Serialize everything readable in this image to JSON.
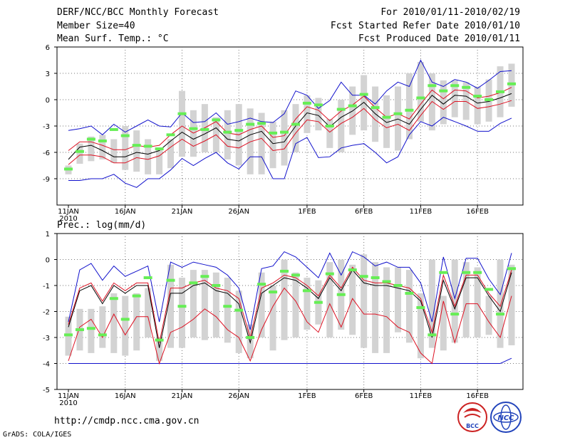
{
  "header": {
    "title": "DERF/NCC/BCC Monthly Forecast",
    "members": "Member Size=40",
    "variable": "Mean Surf. Temp.: °C",
    "period": "For 2010/01/11-2010/02/19",
    "started": "Fcst Started Refer Date 2010/01/10",
    "produced": "Fcst Produced Date 2010/01/11"
  },
  "footer": {
    "url": "http://cmdp.ncc.cma.gov.cn",
    "grads": "GrADS: COLA/IGES",
    "logo_left": "BCC",
    "logo_right": "NCC"
  },
  "colors": {
    "ensemble_bar": "#d3d3d3",
    "mean_marker": "#66ee55",
    "median_line": "#000000",
    "quartile_line": "#dd1122",
    "extreme_line": "#1111cc",
    "bcc_logo": "#cc2222",
    "ncc_logo": "#2244bb"
  },
  "chart_data": [
    {
      "type": "box",
      "title": "Mean Surf. Temp.: °C",
      "x_ticks": [
        {
          "day": 1,
          "label": "11JAN",
          "sub": "2010"
        },
        {
          "day": 6,
          "label": "16JAN"
        },
        {
          "day": 11,
          "label": "21JAN"
        },
        {
          "day": 16,
          "label": "26JAN"
        },
        {
          "day": 22,
          "label": "1FEB"
        },
        {
          "day": 27,
          "label": "6FEB"
        },
        {
          "day": 32,
          "label": "11FEB"
        },
        {
          "day": 37,
          "label": "16FEB"
        }
      ],
      "ylim": [
        -12,
        6
      ],
      "yticks": [
        6,
        3,
        0,
        -3,
        -6,
        -9
      ],
      "days": [
        1,
        2,
        3,
        4,
        5,
        6,
        7,
        8,
        9,
        10,
        11,
        12,
        13,
        14,
        15,
        16,
        17,
        18,
        19,
        20,
        21,
        22,
        23,
        24,
        25,
        26,
        27,
        28,
        29,
        30,
        31,
        32,
        33,
        34,
        35,
        36,
        37,
        38,
        39,
        40
      ],
      "box_low": [
        -8.5,
        -7.3,
        -7,
        -6.8,
        -7.2,
        -8,
        -8.2,
        -8.5,
        -8.5,
        -7.8,
        -6.5,
        -6.5,
        -6,
        -6,
        -6.8,
        -7.5,
        -8.5,
        -8.5,
        -7.8,
        -7.5,
        -6,
        -3.8,
        -3.5,
        -5.5,
        -6,
        -4,
        -3.5,
        -4.8,
        -5.5,
        -5.8,
        -4.5,
        -2.5,
        -3.5,
        -2.8,
        -2,
        -2.3,
        -2.8,
        -2.5,
        -2,
        -0.8
      ],
      "box_high": [
        -7.5,
        -5,
        -4.2,
        -4,
        -4.5,
        -3,
        -3.5,
        -4.5,
        -5.5,
        -4.5,
        1,
        -1.2,
        -0.5,
        -2,
        -1.2,
        -0.5,
        -1,
        -1.5,
        -2.5,
        -1.2,
        -0.5,
        0.5,
        0.2,
        -2.2,
        0,
        1.5,
        2.8,
        1.5,
        0.5,
        1.5,
        3,
        4.3,
        3,
        2.2,
        2.2,
        2,
        1.5,
        2.3,
        3.8,
        4.1
      ],
      "mean": [
        -7.9,
        -5.9,
        -4.5,
        -4.7,
        -3.4,
        -4.1,
        -5.2,
        -5.3,
        -5.6,
        -4.0,
        -1.6,
        -3.3,
        -3.4,
        -2.3,
        -3.7,
        -3.5,
        -2.8,
        -2.7,
        -3.8,
        -3.7,
        -2.8,
        -0.4,
        -0.6,
        -3.0,
        -1.1,
        -0.7,
        0.6,
        -0.9,
        -2.0,
        -1.6,
        -1.2,
        0.2,
        1.6,
        1.0,
        1.6,
        1.4,
        0.4,
        0.0,
        0.9,
        1.8
      ],
      "median": [
        -6.8,
        -5.4,
        -5.2,
        -5.8,
        -6.5,
        -6.5,
        -6,
        -6.2,
        -5.8,
        -4.7,
        -3.7,
        -4.5,
        -3.9,
        -3.2,
        -4.5,
        -4.7,
        -4.0,
        -3.6,
        -5.0,
        -4.8,
        -3.0,
        -1.5,
        -1.8,
        -3.1,
        -2.0,
        -1.3,
        -0.3,
        -1.6,
        -2.6,
        -2.2,
        -2.8,
        -1.1,
        0.5,
        -0.5,
        0.5,
        0.4,
        -0.4,
        -0.2,
        0.2,
        0.7
      ],
      "q_high": [
        -5.8,
        -4.8,
        -4.8,
        -5.2,
        -5.7,
        -5.7,
        -5.2,
        -5.4,
        -5.2,
        -4.0,
        -3.0,
        -3.8,
        -3.2,
        -2.5,
        -3.8,
        -4.0,
        -3.4,
        -3.0,
        -4.3,
        -4.1,
        -2.2,
        -0.8,
        -1.2,
        -2.4,
        -1.3,
        -0.6,
        0.4,
        -0.9,
        -2.0,
        -1.6,
        -2.2,
        -0.5,
        1.1,
        0.1,
        1.1,
        1.0,
        0.2,
        0.4,
        0.8,
        1.4
      ],
      "q_low": [
        -7.4,
        -6.3,
        -6.3,
        -6.5,
        -7.2,
        -7.2,
        -6.6,
        -6.8,
        -6.4,
        -5.4,
        -4.5,
        -5.3,
        -4.7,
        -4.0,
        -5.3,
        -5.5,
        -4.8,
        -4.4,
        -5.8,
        -5.6,
        -3.8,
        -2.3,
        -2.5,
        -3.7,
        -2.7,
        -2.0,
        -1.0,
        -2.3,
        -3.2,
        -2.8,
        -3.5,
        -1.8,
        -0.2,
        -1.1,
        -0.2,
        -0.2,
        -1.0,
        -0.8,
        -0.5,
        -0.1
      ],
      "max": [
        -3.5,
        -3.3,
        -3.0,
        -4.0,
        -2.8,
        -3.7,
        -3.0,
        -2.3,
        -3.0,
        -3.1,
        -1.5,
        -2.6,
        -2.5,
        -1.5,
        -2.8,
        -2.5,
        -2.1,
        -2.5,
        -2.6,
        -1.6,
        1.0,
        0.5,
        -1.0,
        -0.1,
        2.0,
        0.5,
        0.5,
        -0.5,
        1.0,
        2.0,
        1.5,
        4.5,
        2.0,
        1.5,
        2.3,
        2.0,
        1.3,
        2.2,
        3.2,
        3.3
      ],
      "min": [
        -9.2,
        -9.2,
        -9.0,
        -9.0,
        -8.5,
        -9.5,
        -10.0,
        -9.0,
        -9.0,
        -8.0,
        -6.7,
        -7.5,
        -6.7,
        -6.0,
        -7.2,
        -7.9,
        -6.5,
        -6.5,
        -9.0,
        -9.0,
        -5.0,
        -4.3,
        -6.6,
        -6.5,
        -5.5,
        -5.2,
        -5.0,
        -6.0,
        -7.2,
        -6.5,
        -4.0,
        -2.5,
        -3.0,
        -2.0,
        -2.5,
        -3.0,
        -3.6,
        -3.6,
        -2.7,
        -2.1
      ]
    },
    {
      "type": "box",
      "title": "Prec.: log(mm/d)",
      "x_ticks": [
        {
          "day": 1,
          "label": "11JAN",
          "sub": "2010"
        },
        {
          "day": 6,
          "label": "16JAN"
        },
        {
          "day": 11,
          "label": "21JAN"
        },
        {
          "day": 16,
          "label": "26JAN"
        },
        {
          "day": 22,
          "label": "1FEB"
        },
        {
          "day": 27,
          "label": "6FEB"
        },
        {
          "day": 32,
          "label": "11FEB"
        },
        {
          "day": 37,
          "label": "16FEB"
        }
      ],
      "ylim": [
        -5,
        1
      ],
      "yticks": [
        1,
        0,
        -1,
        -2,
        -3,
        -4,
        -5
      ],
      "days": [
        1,
        2,
        3,
        4,
        5,
        6,
        7,
        8,
        9,
        10,
        11,
        12,
        13,
        14,
        15,
        16,
        17,
        18,
        19,
        20,
        21,
        22,
        23,
        24,
        25,
        26,
        27,
        28,
        29,
        30,
        31,
        32,
        33,
        34,
        35,
        36,
        37,
        38,
        39,
        40
      ],
      "box_low": [
        -3.7,
        -3.5,
        -3.6,
        -3.4,
        -3.6,
        -3.7,
        -3.5,
        -3.0,
        -3.9,
        -3.4,
        -3.4,
        -3.0,
        -3.1,
        -3.0,
        -3.2,
        -3.6,
        -3.8,
        -3.0,
        -3.5,
        -3.1,
        -3.0,
        -2.7,
        -2.5,
        -3.0,
        -2.7,
        -2.9,
        -3.4,
        -3.6,
        -3.6,
        -2.8,
        -3.2,
        -3.8,
        -3.4,
        -3.5,
        -3.2,
        -3.0,
        -3.0,
        -2.9,
        -3.4,
        -3.3
      ],
      "box_high": [
        -2.2,
        -1.9,
        -1.9,
        -1.8,
        -1.3,
        -1.4,
        -1.3,
        -1.1,
        -3.0,
        -0.2,
        -0.7,
        -0.4,
        -0.4,
        -0.5,
        -0.7,
        -1.2,
        -2.5,
        -0.5,
        -1.0,
        0.0,
        -0.5,
        -0.7,
        -0.8,
        -0.1,
        0.0,
        -0.2,
        0.2,
        -0.1,
        -0.3,
        -0.3,
        -0.4,
        -1.3,
        0.0,
        -1.4,
        0.0,
        -0.1,
        -0.3,
        -1.4,
        0.0,
        -0.2
      ],
      "mean": [
        -2.9,
        -2.7,
        -2.65,
        -2.9,
        -1.5,
        -2.3,
        -1.4,
        -0.7,
        -3.1,
        -0.8,
        -1.8,
        -0.9,
        -0.65,
        -1.0,
        -1.8,
        -1.95,
        -3.0,
        -0.95,
        -1.25,
        -0.45,
        -0.6,
        -1.2,
        -1.65,
        -0.55,
        -1.35,
        -0.4,
        -0.65,
        -0.7,
        -0.85,
        -1.0,
        -1.3,
        -1.85,
        -2.9,
        -0.5,
        -2.1,
        -0.5,
        -0.5,
        -1.15,
        -2.1,
        -0.35
      ],
      "median": [
        -2.6,
        -1.2,
        -1.0,
        -1.7,
        -1.0,
        -1.3,
        -1.0,
        -1.0,
        -3.4,
        -1.3,
        -1.3,
        -1.0,
        -0.9,
        -1.2,
        -1.3,
        -1.7,
        -3.2,
        -1.3,
        -1.0,
        -0.7,
        -0.8,
        -1.1,
        -1.5,
        -0.7,
        -1.2,
        -0.4,
        -0.9,
        -1.0,
        -1.0,
        -1.1,
        -1.2,
        -1.6,
        -3.0,
        -0.8,
        -1.9,
        -0.7,
        -0.7,
        -1.4,
        -2.0,
        -0.5
      ],
      "q_high": [
        -2.5,
        -1.1,
        -0.9,
        -1.6,
        -0.9,
        -1.2,
        -0.9,
        -0.9,
        -3.2,
        -1.1,
        -1.1,
        -0.9,
        -0.8,
        -1.1,
        -1.2,
        -1.5,
        -3.0,
        -1.1,
        -0.9,
        -0.6,
        -0.7,
        -1.0,
        -1.4,
        -0.6,
        -1.1,
        -0.3,
        -0.8,
        -0.9,
        -0.9,
        -1.0,
        -1.1,
        -1.5,
        -2.8,
        -0.6,
        -1.8,
        -0.6,
        -0.6,
        -1.3,
        -1.8,
        -0.4
      ],
      "q_low": [
        -3.9,
        -2.6,
        -2.3,
        -3.0,
        -2.1,
        -2.9,
        -2.2,
        -2.2,
        -4.0,
        -2.8,
        -2.6,
        -2.3,
        -1.9,
        -2.2,
        -2.7,
        -3.0,
        -3.9,
        -2.7,
        -1.8,
        -1.1,
        -1.6,
        -2.4,
        -2.8,
        -1.7,
        -2.6,
        -1.5,
        -2.1,
        -2.1,
        -2.2,
        -2.6,
        -2.8,
        -3.6,
        -4.0,
        -1.6,
        -3.2,
        -1.7,
        -1.7,
        -2.4,
        -3.0,
        -1.4
      ],
      "max": [
        -2.4,
        -0.4,
        -0.15,
        -0.8,
        -0.25,
        -0.65,
        -0.45,
        -0.25,
        -2.4,
        -0.1,
        -0.3,
        -0.1,
        -0.2,
        -0.3,
        -0.6,
        -1.1,
        -2.7,
        -0.35,
        -0.25,
        0.3,
        0.1,
        -0.3,
        -0.7,
        0.25,
        -0.6,
        0.3,
        0.1,
        -0.25,
        -0.1,
        -0.3,
        -0.3,
        -0.9,
        -2.4,
        0.1,
        -1.5,
        0.05,
        0.05,
        -0.75,
        -1.35,
        0.25
      ],
      "min": [
        -4,
        -4,
        -4,
        -4,
        -4,
        -4,
        -4,
        -4,
        -4,
        -4,
        -4,
        -4,
        -4,
        -4,
        -4,
        -4,
        -4,
        -4,
        -4,
        -4,
        -4,
        -4,
        -4,
        -4,
        -4,
        -4,
        -4,
        -4,
        -4,
        -4,
        -4,
        -4,
        -4,
        -4,
        -4,
        -4,
        -4,
        -4,
        -4,
        -3.8
      ]
    }
  ]
}
